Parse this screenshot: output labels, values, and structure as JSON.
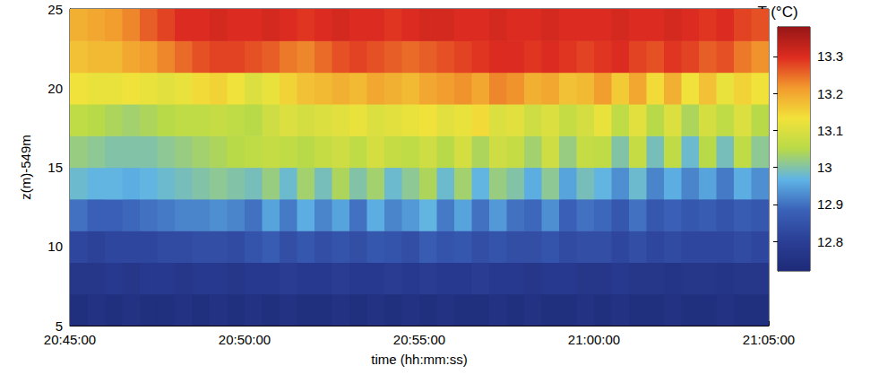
{
  "chart_data": {
    "type": "heatmap",
    "x_label": "time (hh:mm:ss)",
    "y_label": "z(m)-549m",
    "x_edges": [
      "20:45:00",
      "20:45:30",
      "20:46:00",
      "20:46:30",
      "20:47:00",
      "20:47:30",
      "20:48:00",
      "20:48:30",
      "20:49:00",
      "20:49:30",
      "20:50:00",
      "20:50:30",
      "20:51:00",
      "20:51:30",
      "20:52:00",
      "20:52:30",
      "20:53:00",
      "20:53:30",
      "20:54:00",
      "20:54:30",
      "20:55:00",
      "20:55:30",
      "20:56:00",
      "20:56:30",
      "20:57:00",
      "20:57:30",
      "20:58:00",
      "20:58:30",
      "20:59:00",
      "20:59:30",
      "21:00:00",
      "21:00:30",
      "21:01:00",
      "21:01:30",
      "21:02:00",
      "21:02:30",
      "21:03:00",
      "21:03:30",
      "21:04:00",
      "21:04:30",
      "21:05:00"
    ],
    "y_edges": [
      5,
      7,
      9,
      11,
      13,
      15,
      17,
      19,
      21,
      23,
      25
    ],
    "xlim": [
      "20:45:00",
      "21:05:00"
    ],
    "xticks": [
      "20:45:00",
      "20:50:00",
      "20:55:00",
      "21:00:00",
      "21:05:00"
    ],
    "ylim": [
      5,
      25
    ],
    "yticks": [
      5,
      10,
      15,
      20,
      25
    ],
    "cells": [
      [
        12.74,
        12.75,
        12.74,
        12.75,
        12.74,
        12.74,
        12.75,
        12.74,
        12.75,
        12.74,
        12.75,
        12.74,
        12.75,
        12.74,
        12.74,
        12.75,
        12.74,
        12.75,
        12.74,
        12.75,
        12.74,
        12.75,
        12.74,
        12.74,
        12.75,
        12.74,
        12.75,
        12.74,
        12.74,
        12.75,
        12.74,
        12.75,
        12.74,
        12.74,
        12.75,
        12.74,
        12.74,
        12.75,
        12.74,
        12.74
      ],
      [
        12.77,
        12.77,
        12.78,
        12.77,
        12.78,
        12.78,
        12.77,
        12.78,
        12.78,
        12.77,
        12.78,
        12.78,
        12.79,
        12.78,
        12.78,
        12.79,
        12.78,
        12.78,
        12.79,
        12.78,
        12.79,
        12.78,
        12.78,
        12.79,
        12.78,
        12.78,
        12.77,
        12.78,
        12.78,
        12.77,
        12.77,
        12.78,
        12.77,
        12.77,
        12.76,
        12.77,
        12.77,
        12.76,
        12.77,
        12.77
      ],
      [
        12.82,
        12.81,
        12.82,
        12.82,
        12.82,
        12.83,
        12.83,
        12.84,
        12.84,
        12.83,
        12.85,
        12.87,
        12.84,
        12.86,
        12.84,
        12.85,
        12.84,
        12.86,
        12.85,
        12.84,
        12.87,
        12.85,
        12.86,
        12.84,
        12.85,
        12.84,
        12.84,
        12.85,
        12.83,
        12.84,
        12.84,
        12.82,
        12.84,
        12.82,
        12.83,
        12.82,
        12.82,
        12.82,
        12.83,
        12.82
      ],
      [
        12.9,
        12.88,
        12.88,
        12.89,
        12.9,
        12.91,
        12.92,
        12.92,
        12.93,
        12.92,
        12.9,
        12.95,
        12.91,
        12.96,
        12.92,
        12.95,
        12.9,
        12.96,
        12.92,
        12.94,
        12.97,
        12.91,
        12.95,
        12.9,
        12.94,
        12.9,
        12.89,
        12.93,
        12.88,
        12.9,
        12.89,
        12.86,
        12.9,
        12.86,
        12.88,
        12.86,
        12.87,
        12.85,
        12.87,
        12.86
      ],
      [
        12.98,
        12.97,
        12.97,
        12.96,
        12.97,
        12.98,
        12.99,
        13.0,
        13.01,
        13.0,
        12.99,
        13.02,
        12.98,
        13.03,
        12.99,
        13.04,
        13.0,
        13.03,
        12.98,
        13.01,
        13.04,
        12.98,
        13.03,
        12.97,
        13.02,
        13.0,
        12.96,
        13.01,
        12.95,
        12.99,
        12.97,
        12.93,
        12.98,
        12.92,
        12.96,
        12.92,
        12.95,
        12.91,
        12.96,
        12.93
      ],
      [
        13.02,
        13.01,
        13.0,
        13.0,
        13.0,
        13.01,
        13.02,
        13.03,
        13.04,
        13.05,
        13.06,
        13.07,
        13.06,
        13.05,
        13.07,
        13.08,
        13.06,
        13.09,
        13.07,
        13.06,
        13.08,
        13.05,
        13.09,
        13.04,
        13.08,
        13.07,
        13.03,
        13.08,
        13.02,
        13.07,
        13.06,
        13.0,
        13.07,
        12.99,
        13.06,
        12.98,
        13.05,
        12.99,
        13.06,
        13.01
      ],
      [
        13.06,
        13.05,
        13.04,
        13.03,
        13.04,
        13.05,
        13.06,
        13.06,
        13.07,
        13.06,
        13.05,
        13.08,
        13.1,
        13.09,
        13.1,
        13.11,
        13.12,
        13.1,
        13.11,
        13.12,
        13.13,
        13.11,
        13.12,
        13.14,
        13.1,
        13.11,
        13.08,
        13.1,
        13.07,
        13.09,
        13.12,
        13.06,
        13.11,
        13.05,
        13.1,
        13.04,
        13.09,
        13.06,
        13.1,
        13.05
      ],
      [
        13.13,
        13.12,
        13.12,
        13.13,
        13.12,
        13.11,
        13.12,
        13.14,
        13.15,
        13.13,
        13.1,
        13.12,
        13.15,
        13.17,
        13.18,
        13.19,
        13.18,
        13.2,
        13.19,
        13.18,
        13.2,
        13.21,
        13.22,
        13.2,
        13.23,
        13.22,
        13.19,
        13.2,
        13.17,
        13.18,
        13.21,
        13.16,
        13.2,
        13.14,
        13.19,
        13.13,
        13.17,
        13.12,
        13.15,
        13.13
      ],
      [
        13.17,
        13.18,
        13.18,
        13.2,
        13.21,
        13.23,
        13.25,
        13.27,
        13.28,
        13.28,
        13.27,
        13.26,
        13.24,
        13.23,
        13.25,
        13.27,
        13.28,
        13.27,
        13.26,
        13.25,
        13.26,
        13.27,
        13.28,
        13.29,
        13.3,
        13.3,
        13.29,
        13.3,
        13.29,
        13.28,
        13.29,
        13.3,
        13.28,
        13.27,
        13.29,
        13.28,
        13.26,
        13.27,
        13.24,
        13.22
      ],
      [
        13.19,
        13.2,
        13.21,
        13.23,
        13.26,
        13.28,
        13.3,
        13.3,
        13.31,
        13.3,
        13.3,
        13.31,
        13.3,
        13.29,
        13.3,
        13.31,
        13.3,
        13.3,
        13.29,
        13.3,
        13.31,
        13.31,
        13.3,
        13.3,
        13.31,
        13.3,
        13.3,
        13.31,
        13.3,
        13.3,
        13.3,
        13.31,
        13.3,
        13.3,
        13.31,
        13.3,
        13.29,
        13.3,
        13.28,
        13.27
      ]
    ],
    "colorbar": {
      "label": "T (°C)",
      "range": [
        12.72,
        13.38
      ],
      "ticks": [
        12.8,
        12.9,
        13,
        13.1,
        13.2,
        13.3
      ]
    },
    "grid": false
  }
}
